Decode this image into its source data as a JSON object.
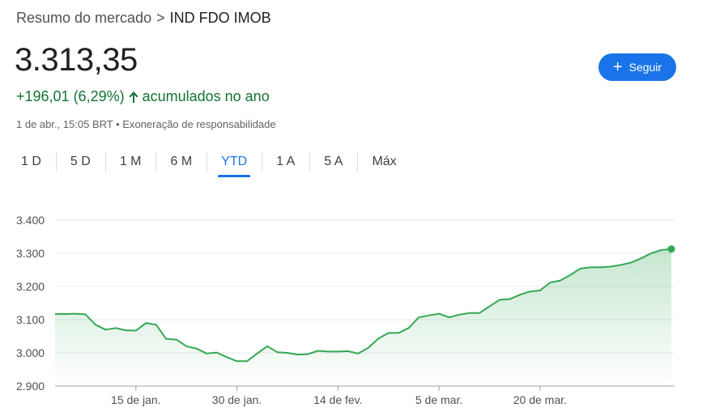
{
  "breadcrumb": {
    "parent": "Resumo do mercado",
    "separator": ">",
    "current": "IND FDO IMOB"
  },
  "quote": {
    "price": "3.313,35",
    "change": "+196,01 (6,29%)",
    "change_suffix": "acumulados no ano",
    "meta": "1 de abr., 15:05 BRT • Exoneração de responsabilidade"
  },
  "follow_button": {
    "label": "Seguir",
    "icon": "plus-icon"
  },
  "tabs": [
    "1 D",
    "5 D",
    "1 M",
    "6 M",
    "YTD",
    "1 A",
    "5 A",
    "Máx"
  ],
  "active_tab": "YTD",
  "colors": {
    "accent": "#1a73e8",
    "positive": "#137333",
    "line": "#34a853"
  },
  "chart_data": {
    "type": "area",
    "title": "",
    "xlabel": "",
    "ylabel": "",
    "ylim": [
      2900,
      3400
    ],
    "y_ticks": [
      3400,
      3300,
      3200,
      3100,
      3000,
      2900
    ],
    "y_tick_labels": [
      "3.400",
      "3.300",
      "3.200",
      "3.100",
      "3.000",
      "2.900"
    ],
    "x_ticks": [
      {
        "index": 8,
        "label": "15 de jan."
      },
      {
        "index": 18,
        "label": "30 de jan."
      },
      {
        "index": 28,
        "label": "14 de fev."
      },
      {
        "index": 38,
        "label": "5 de mar."
      },
      {
        "index": 48,
        "label": "20 de mar."
      }
    ],
    "grid": true,
    "series": [
      {
        "values": [
          3117,
          3117,
          3118,
          3116,
          3085,
          3070,
          3075,
          3068,
          3067,
          3090,
          3085,
          3042,
          3040,
          3020,
          3013,
          2998,
          3001,
          2987,
          2975,
          2975,
          2998,
          3020,
          3002,
          3000,
          2995,
          2996,
          3006,
          3004,
          3004,
          3005,
          2998,
          3015,
          3043,
          3060,
          3060,
          3075,
          3107,
          3113,
          3118,
          3107,
          3115,
          3120,
          3120,
          3140,
          3160,
          3162,
          3175,
          3185,
          3188,
          3212,
          3218,
          3235,
          3254,
          3258,
          3258,
          3260,
          3265,
          3272,
          3285,
          3300,
          3310,
          3313
        ]
      }
    ]
  }
}
